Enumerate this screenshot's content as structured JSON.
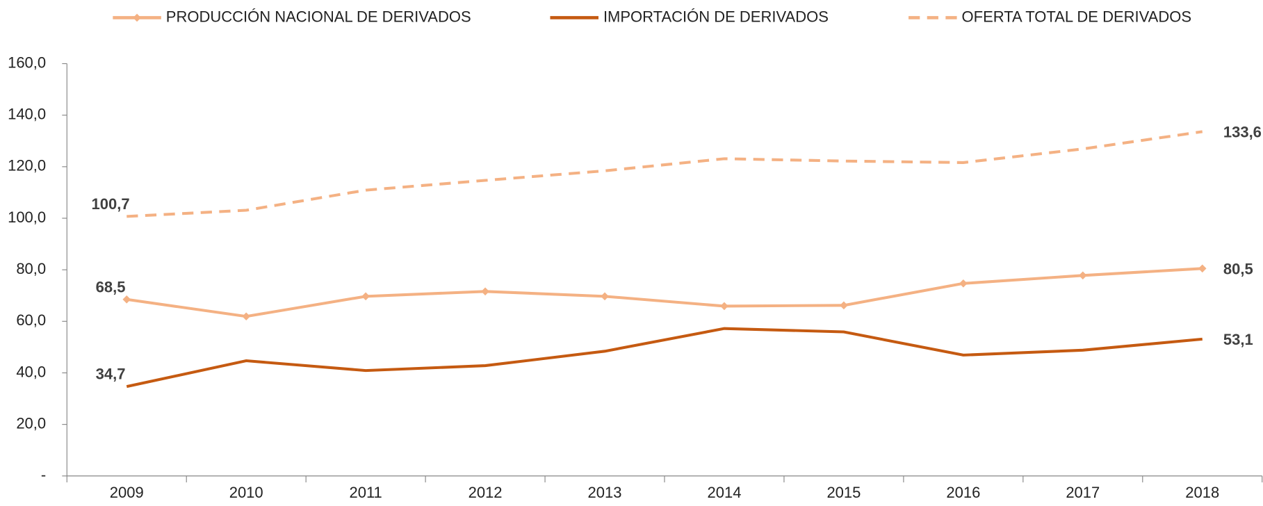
{
  "chart_data": {
    "type": "line",
    "categories": [
      "2009",
      "2010",
      "2011",
      "2012",
      "2013",
      "2014",
      "2015",
      "2016",
      "2017",
      "2018"
    ],
    "series": [
      {
        "name": "PRODUCCIÓN NACIONAL DE DERIVADOS",
        "color": "#f4b183",
        "marker": "diamond",
        "values": [
          68.5,
          61.9,
          69.7,
          71.6,
          69.7,
          65.9,
          66.2,
          74.7,
          77.8,
          80.5
        ],
        "value_labels": [
          "68,5",
          null,
          null,
          null,
          null,
          null,
          null,
          null,
          null,
          "80,5"
        ]
      },
      {
        "name": "IMPORTACIÓN DE DERIVADOS",
        "color": "#c55a11",
        "values": [
          34.7,
          44.7,
          40.9,
          42.8,
          48.4,
          57.2,
          55.9,
          46.9,
          48.8,
          53.1
        ],
        "value_labels": [
          "34,7",
          null,
          null,
          null,
          null,
          null,
          null,
          null,
          null,
          "53,1"
        ]
      },
      {
        "name": "OFERTA TOTAL DE DERIVADOS",
        "color": "#f4b183",
        "dashed": true,
        "values": [
          100.7,
          103.1,
          110.9,
          114.7,
          118.4,
          123.1,
          122.2,
          121.6,
          126.9,
          133.6
        ],
        "value_labels": [
          "100,7",
          null,
          null,
          null,
          null,
          null,
          null,
          null,
          null,
          "133,6"
        ]
      }
    ],
    "ylim": [
      0,
      160
    ],
    "yticks": [
      {
        "value": 0,
        "label": "-"
      },
      {
        "value": 20,
        "label": "20,0"
      },
      {
        "value": 40,
        "label": "40,0"
      },
      {
        "value": 60,
        "label": "60,0"
      },
      {
        "value": 80,
        "label": "80,0"
      },
      {
        "value": 100,
        "label": "100,0"
      },
      {
        "value": 120,
        "label": "120,0"
      },
      {
        "value": 140,
        "label": "140,0"
      },
      {
        "value": 160,
        "label": "160,0"
      }
    ],
    "legend": "top"
  }
}
